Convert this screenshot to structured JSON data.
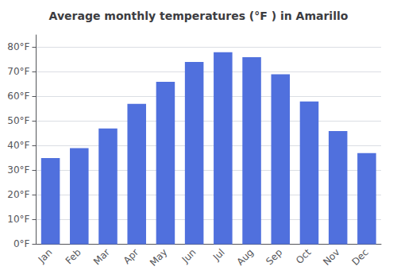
{
  "chart_data": {
    "type": "bar",
    "title": "Average monthly temperatures (°F ) in Amarillo",
    "categories": [
      "Jan",
      "Feb",
      "Mar",
      "Apr",
      "May",
      "Jun",
      "Jul",
      "Aug",
      "Sep",
      "Oct",
      "Nov",
      "Dec"
    ],
    "values": [
      35,
      39,
      47,
      57,
      66,
      74,
      78,
      76,
      69,
      58,
      46,
      37
    ],
    "ylim": [
      0,
      85
    ],
    "yticks": [
      {
        "value": 0,
        "label": "0°F"
      },
      {
        "value": 10,
        "label": "10°F"
      },
      {
        "value": 20,
        "label": "20°F"
      },
      {
        "value": 30,
        "label": "30°F"
      },
      {
        "value": 40,
        "label": "40°F"
      },
      {
        "value": 50,
        "label": "50°F"
      },
      {
        "value": 60,
        "label": "60°F"
      },
      {
        "value": 70,
        "label": "70°F"
      },
      {
        "value": 80,
        "label": "80°F"
      }
    ],
    "grid": true
  }
}
